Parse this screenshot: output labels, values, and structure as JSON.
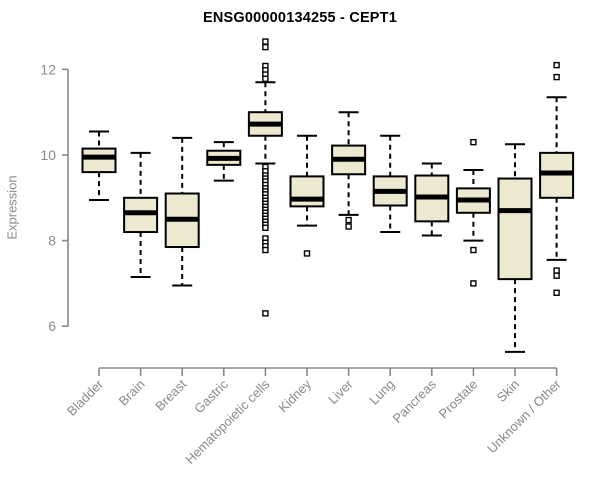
{
  "title": "ENSG00000134255 - CEPT1",
  "chart_data": {
    "type": "boxplot",
    "title": "ENSG00000134255 - CEPT1",
    "xlabel": "",
    "ylabel": "Expression",
    "ylim": [
      5.0,
      12.8
    ],
    "yticks": [
      6,
      8,
      10,
      12
    ],
    "grid": false,
    "legend": "none",
    "colors": {
      "box_fill": "#EDE8D0",
      "box_stroke": "#000000",
      "median": "#000000",
      "whisker": "#000000",
      "axis": "#898989",
      "tick_label": "#8a8a8a",
      "title": "#000000",
      "background": "#ffffff"
    },
    "categories": [
      "Bladder",
      "Brain",
      "Breast",
      "Gastric",
      "Hematopoietic cells",
      "Kidney",
      "Liver",
      "Lung",
      "Pancreas",
      "Prostate",
      "Skin",
      "Unknown / Other"
    ],
    "series": [
      {
        "name": "Bladder",
        "whisker_low": 8.95,
        "q1": 9.6,
        "median": 9.95,
        "q3": 10.15,
        "whisker_high": 10.55,
        "outliers": []
      },
      {
        "name": "Brain",
        "whisker_low": 7.15,
        "q1": 8.2,
        "median": 8.65,
        "q3": 9.0,
        "whisker_high": 10.05,
        "outliers": []
      },
      {
        "name": "Breast",
        "whisker_low": 6.95,
        "q1": 7.85,
        "median": 8.5,
        "q3": 9.1,
        "whisker_high": 10.4,
        "outliers": []
      },
      {
        "name": "Gastric",
        "whisker_low": 9.4,
        "q1": 9.77,
        "median": 9.92,
        "q3": 10.1,
        "whisker_high": 10.3,
        "outliers": []
      },
      {
        "name": "Hematopoietic cells",
        "whisker_low": 9.8,
        "q1": 10.45,
        "median": 10.72,
        "q3": 11.0,
        "whisker_high": 11.7,
        "outliers": [
          12.65,
          12.52,
          12.08,
          11.98,
          11.88,
          11.78,
          9.72,
          9.62,
          9.52,
          9.45,
          9.38,
          9.3,
          9.22,
          9.15,
          9.08,
          9.0,
          8.93,
          8.86,
          8.79,
          8.72,
          8.65,
          8.58,
          8.51,
          8.44,
          8.37,
          8.3,
          8.05,
          7.95,
          7.87,
          7.78,
          6.3
        ]
      },
      {
        "name": "Kidney",
        "whisker_low": 8.35,
        "q1": 8.8,
        "median": 8.97,
        "q3": 9.5,
        "whisker_high": 10.45,
        "outliers": [
          7.7
        ]
      },
      {
        "name": "Liver",
        "whisker_low": 8.6,
        "q1": 9.55,
        "median": 9.9,
        "q3": 10.22,
        "whisker_high": 11.0,
        "outliers": [
          8.48,
          8.33
        ]
      },
      {
        "name": "Lung",
        "whisker_low": 8.2,
        "q1": 8.82,
        "median": 9.15,
        "q3": 9.5,
        "whisker_high": 10.45,
        "outliers": []
      },
      {
        "name": "Pancreas",
        "whisker_low": 8.12,
        "q1": 8.45,
        "median": 9.02,
        "q3": 9.52,
        "whisker_high": 9.8,
        "outliers": []
      },
      {
        "name": "Prostate",
        "whisker_low": 8.0,
        "q1": 8.65,
        "median": 8.95,
        "q3": 9.22,
        "whisker_high": 9.65,
        "outliers": [
          10.3,
          7.78,
          7.0
        ]
      },
      {
        "name": "Skin",
        "whisker_low": 5.4,
        "q1": 7.1,
        "median": 8.7,
        "q3": 9.45,
        "whisker_high": 10.25,
        "outliers": []
      },
      {
        "name": "Unknown / Other",
        "whisker_low": 7.55,
        "q1": 9.0,
        "median": 9.58,
        "q3": 10.05,
        "whisker_high": 11.35,
        "outliers": [
          12.1,
          11.82,
          7.3,
          7.18,
          6.78
        ]
      }
    ]
  }
}
